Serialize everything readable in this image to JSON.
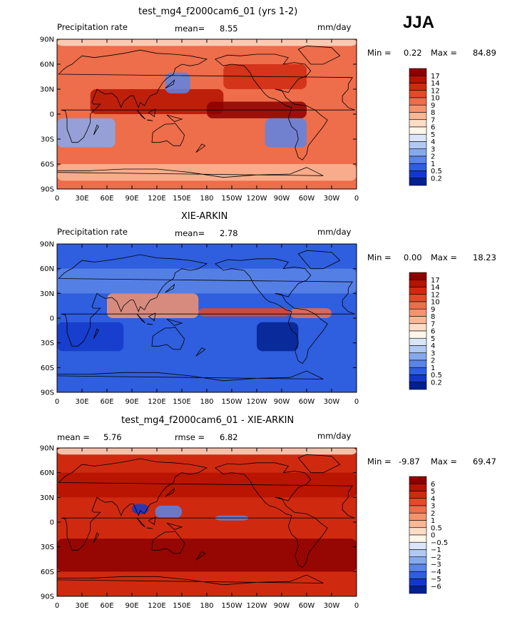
{
  "season": "JJA",
  "x_ticks": [
    "0",
    "30E",
    "60E",
    "90E",
    "120E",
    "150E",
    "180",
    "150W",
    "120W",
    "90W",
    "60W",
    "30W",
    "0"
  ],
  "y_ticks": [
    "90N",
    "60N",
    "30N",
    "0",
    "30S",
    "60S",
    "90S"
  ],
  "panels": [
    {
      "title": "test_mg4_f2000cam6_01 (yrs 1-2)",
      "left_label": "Precipitation rate",
      "stat1_label": "mean=",
      "stat1_value": "8.55",
      "stat2_label": "",
      "stat2_value": "",
      "units": "mm/day",
      "min_label": "Min =",
      "min_value": "0.22",
      "max_label": "Max =",
      "max_value": "84.89",
      "colorbar_labels": [
        "17",
        "14",
        "12",
        "10",
        "9",
        "8",
        "7",
        "6",
        "5",
        "4",
        "3",
        "2",
        "1",
        "0.5",
        "0.2"
      ],
      "colorbar_colors": [
        "#8c0000",
        "#b51200",
        "#cf2a10",
        "#e24a28",
        "#ee6d4a",
        "#f5936f",
        "#f9b796",
        "#fbdcc6",
        "#fff6ea",
        "#d8e6f8",
        "#b1c9f3",
        "#86a9ee",
        "#5a85e6",
        "#2f5ede",
        "#1338c9",
        "#02218f"
      ]
    },
    {
      "title": "XIE-ARKIN",
      "left_label": "Precipitation rate",
      "stat1_label": "mean=",
      "stat1_value": "2.78",
      "stat2_label": "",
      "stat2_value": "",
      "units": "mm/day",
      "min_label": "Min =",
      "min_value": "0.00",
      "max_label": "Max =",
      "max_value": "18.23",
      "colorbar_labels": [
        "17",
        "14",
        "12",
        "10",
        "9",
        "8",
        "7",
        "6",
        "5",
        "4",
        "3",
        "2",
        "1",
        "0.5",
        "0.2"
      ],
      "colorbar_colors": [
        "#8c0000",
        "#b51200",
        "#cf2a10",
        "#e24a28",
        "#ee6d4a",
        "#f5936f",
        "#f9b796",
        "#fbdcc6",
        "#fff6ea",
        "#d8e6f8",
        "#b1c9f3",
        "#86a9ee",
        "#5a85e6",
        "#2f5ede",
        "#1338c9",
        "#02218f"
      ]
    },
    {
      "title": "test_mg4_f2000cam6_01 - XIE-ARKIN",
      "left_label": "",
      "stat1_label": "mean =",
      "stat1_value": "5.76",
      "stat2_label": "rmse =",
      "stat2_value": "6.82",
      "units": "mm/day",
      "min_label": "Min =",
      "min_value": "-9.87",
      "max_label": "Max =",
      "max_value": "69.47",
      "colorbar_labels": [
        "6",
        "5",
        "4",
        "3",
        "2",
        "1",
        "0.5",
        "0",
        "−0.5",
        "−1",
        "−2",
        "−3",
        "−4",
        "−5",
        "−6"
      ],
      "colorbar_colors": [
        "#8c0000",
        "#b51200",
        "#cf2a10",
        "#e24a28",
        "#ee6d4a",
        "#f5936f",
        "#f9b796",
        "#fbdcc6",
        "#fff6ea",
        "#d8e6f8",
        "#b1c9f3",
        "#86a9ee",
        "#5a85e6",
        "#2f5ede",
        "#1338c9",
        "#02218f"
      ]
    }
  ]
}
